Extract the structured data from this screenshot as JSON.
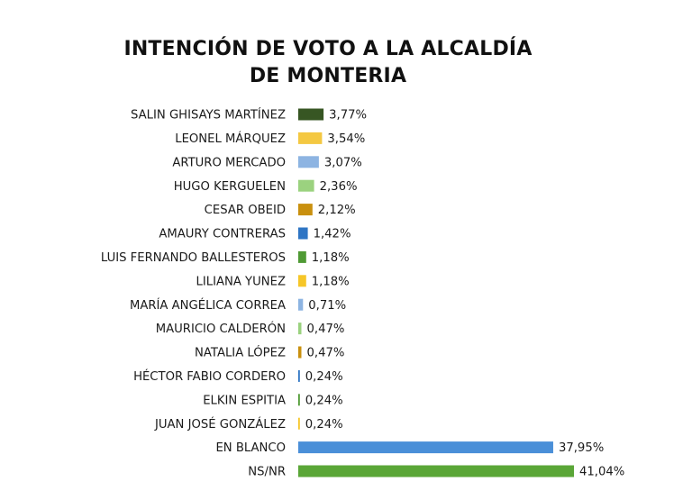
{
  "title": {
    "line1": "INTENCIÓN DE VOTO A LA ALCALDÍA",
    "line2": "DE MONTERIA"
  },
  "chart_data": {
    "type": "bar",
    "orientation": "horizontal",
    "categories": [
      "SALIN GHISAYS MARTÍNEZ",
      "LEONEL MÁRQUEZ",
      "ARTURO MERCADO",
      "HUGO KERGUELEN",
      "CESAR OBEID",
      "AMAURY CONTRERAS",
      "LUIS FERNANDO BALLESTEROS",
      "LILIANA YUNEZ",
      "MARÍA ANGÉLICA CORREA",
      "MAURICIO CALDERÓN",
      "NATALIA LÓPEZ",
      "HÉCTOR FABIO CORDERO",
      "ELKIN ESPITIA",
      "JUAN JOSÉ GONZÁLEZ",
      "EN BLANCO",
      "NS/NR"
    ],
    "values": [
      3.77,
      3.54,
      3.07,
      2.36,
      2.12,
      1.42,
      1.18,
      1.18,
      0.71,
      0.47,
      0.47,
      0.24,
      0.24,
      0.24,
      37.95,
      41.04
    ],
    "value_labels": [
      "3,77%",
      "3,54%",
      "3,07%",
      "2,36%",
      "2,12%",
      "1,42%",
      "1,18%",
      "1,18%",
      "0,71%",
      "0,47%",
      "0,47%",
      "0,24%",
      "0,24%",
      "0,24%",
      "37,95%",
      "41,04%"
    ],
    "colors": [
      "#375623",
      "#f4c842",
      "#8db4e2",
      "#9bd27f",
      "#c9900e",
      "#2e75c4",
      "#4f9a34",
      "#f6c628",
      "#8db4e2",
      "#9bd27f",
      "#c9900e",
      "#2e75c4",
      "#4f9a34",
      "#f6c628",
      "#4a8fd8",
      "#5aa637"
    ],
    "xlim": [
      0,
      41.04
    ],
    "grid": false,
    "legend": "none"
  }
}
